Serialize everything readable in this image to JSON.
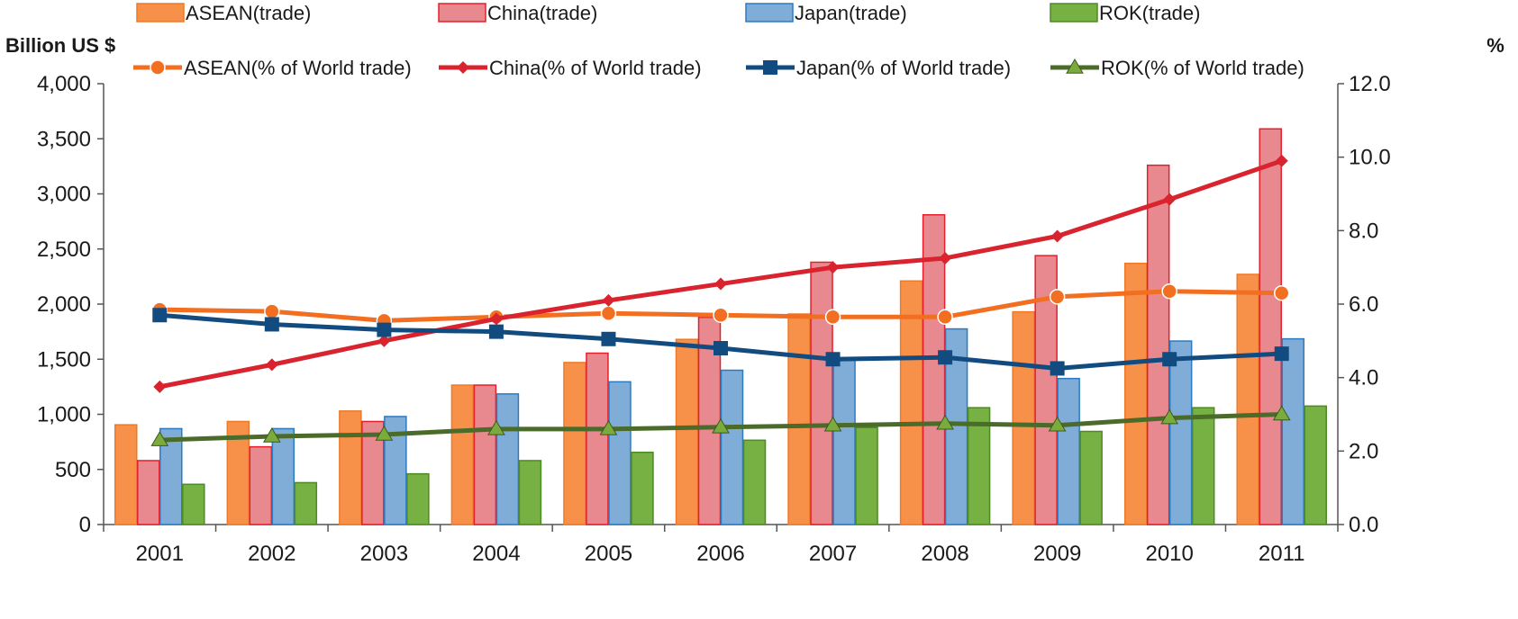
{
  "chart_data": {
    "type": "bar+line",
    "categories": [
      "2001",
      "2002",
      "2003",
      "2004",
      "2005",
      "2006",
      "2007",
      "2008",
      "2009",
      "2010",
      "2011"
    ],
    "y_left": {
      "label": "Billion US $",
      "lim": [
        0,
        4000
      ],
      "ticks": [
        "0",
        "500",
        "1,000",
        "1,500",
        "2,000",
        "2,500",
        "3,000",
        "3,500",
        "4,000"
      ],
      "tick_values": [
        0,
        500,
        1000,
        1500,
        2000,
        2500,
        3000,
        3500,
        4000
      ]
    },
    "y_right": {
      "label": "%",
      "lim": [
        0,
        12
      ],
      "ticks": [
        "0.0",
        "2.0",
        "4.0",
        "6.0",
        "8.0",
        "10.0",
        "12.0"
      ],
      "tick_values": [
        0,
        2,
        4,
        6,
        8,
        10,
        12
      ]
    },
    "bar_series": [
      {
        "name": "ASEAN(trade)",
        "color": "#f7914a",
        "stroke": "#ee7a28",
        "values": [
          905,
          935,
          1030,
          1265,
          1470,
          1680,
          1910,
          2210,
          1930,
          2370,
          2270
        ]
      },
      {
        "name": "China(trade)",
        "color": "#e8898f",
        "stroke": "#e3202b",
        "values": [
          580,
          705,
          935,
          1265,
          1555,
          1880,
          2380,
          2810,
          2440,
          3260,
          3590
        ]
      },
      {
        "name": "Japan(trade)",
        "color": "#7fadd8",
        "stroke": "#2b7bc1",
        "values": [
          870,
          870,
          980,
          1185,
          1295,
          1400,
          1500,
          1775,
          1325,
          1665,
          1685
        ]
      },
      {
        "name": "ROK(trade)",
        "color": "#77b043",
        "stroke": "#4e8a25",
        "values": [
          365,
          380,
          460,
          580,
          655,
          765,
          880,
          1060,
          845,
          1060,
          1075
        ]
      }
    ],
    "line_series": [
      {
        "name": "ASEAN(% of World trade)",
        "color": "#f26f21",
        "marker": "circle",
        "values": [
          5.85,
          5.8,
          5.55,
          5.65,
          5.75,
          5.7,
          5.65,
          5.65,
          6.2,
          6.35,
          6.3
        ]
      },
      {
        "name": "China(% of World trade)",
        "color": "#d9232e",
        "marker": "diamond",
        "values": [
          3.75,
          4.35,
          5.0,
          5.6,
          6.1,
          6.55,
          7.0,
          7.25,
          7.85,
          8.85,
          9.9
        ]
      },
      {
        "name": "Japan(% of World trade)",
        "color": "#124b80",
        "marker": "square",
        "values": [
          5.7,
          5.45,
          5.3,
          5.25,
          5.05,
          4.8,
          4.5,
          4.55,
          4.25,
          4.5,
          4.65
        ]
      },
      {
        "name": "ROK(% of World trade)",
        "color": "#4a6b2a",
        "marker": "triangle",
        "marker_color": "#7bab3d",
        "values": [
          2.3,
          2.4,
          2.45,
          2.6,
          2.6,
          2.65,
          2.7,
          2.75,
          2.7,
          2.9,
          3.0
        ]
      }
    ],
    "legend_position": "top",
    "grid": false
  }
}
